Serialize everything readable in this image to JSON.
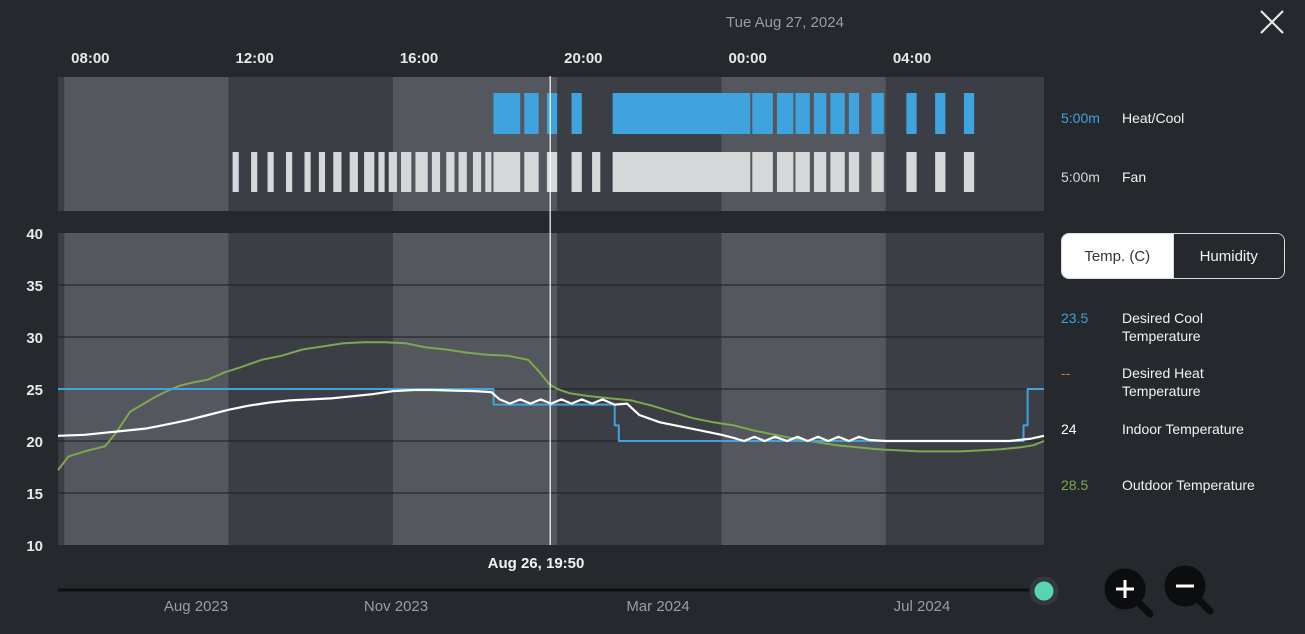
{
  "header": {
    "date": "Tue Aug 27, 2024"
  },
  "time_ticks": [
    "08:00",
    "12:00",
    "16:00",
    "20:00",
    "00:00",
    "04:00"
  ],
  "equipment": {
    "heat_cool": {
      "value": "5:00m",
      "label": "Heat/Cool",
      "color": "#3fa3de"
    },
    "fan": {
      "value": "5:00m",
      "label": "Fan",
      "color": "#d6d7d9"
    },
    "heat_cool_runs": [
      [
        18.45,
        19.1
      ],
      [
        19.2,
        19.55
      ],
      [
        19.75,
        20.0
      ],
      [
        20.35,
        20.6
      ],
      [
        21.35,
        24.7
      ],
      [
        24.75,
        25.25
      ],
      [
        25.35,
        25.75
      ],
      [
        25.8,
        26.15
      ],
      [
        26.25,
        26.55
      ],
      [
        26.65,
        27.0
      ],
      [
        27.1,
        27.35
      ],
      [
        27.65,
        27.95
      ],
      [
        28.5,
        28.75
      ],
      [
        29.2,
        29.45
      ],
      [
        29.9,
        30.15
      ]
    ],
    "fan_runs": [
      [
        12.1,
        12.25
      ],
      [
        12.55,
        12.7
      ],
      [
        12.95,
        13.1
      ],
      [
        13.4,
        13.55
      ],
      [
        13.85,
        14.0
      ],
      [
        14.2,
        14.35
      ],
      [
        14.55,
        14.75
      ],
      [
        14.95,
        15.15
      ],
      [
        15.3,
        15.55
      ],
      [
        15.65,
        15.8
      ],
      [
        15.9,
        16.1
      ],
      [
        16.2,
        16.45
      ],
      [
        16.55,
        16.85
      ],
      [
        16.95,
        17.15
      ],
      [
        17.3,
        17.5
      ],
      [
        17.6,
        17.8
      ],
      [
        17.95,
        18.15
      ],
      [
        18.25,
        18.4
      ],
      [
        18.45,
        19.1
      ],
      [
        19.2,
        19.55
      ],
      [
        19.75,
        20.0
      ],
      [
        20.35,
        20.6
      ],
      [
        20.85,
        21.05
      ],
      [
        21.35,
        24.7
      ],
      [
        24.75,
        25.25
      ],
      [
        25.35,
        25.75
      ],
      [
        25.8,
        26.15
      ],
      [
        26.25,
        26.55
      ],
      [
        26.65,
        27.0
      ],
      [
        27.1,
        27.35
      ],
      [
        27.65,
        27.95
      ],
      [
        28.5,
        28.75
      ],
      [
        29.2,
        29.45
      ],
      [
        29.9,
        30.15
      ]
    ]
  },
  "toggle": {
    "temp_label": "Temp. (C)",
    "humidity_label": "Humidity",
    "selected": "temp"
  },
  "legend": {
    "desired_cool": {
      "value": "23.5",
      "label": "Desired Cool Temperature",
      "color": "#3fa3de"
    },
    "desired_heat": {
      "value": "--",
      "label": "Desired Heat Temperature",
      "color": "#e07a3a"
    },
    "indoor": {
      "value": "24",
      "label": "Indoor Temperature",
      "color": "#ffffff"
    },
    "outdoor": {
      "value": "28.5",
      "label": "Outdoor Temperature",
      "color": "#7ea84f"
    }
  },
  "cursor": {
    "label": "Aug 26, 19:50",
    "time": 19.83
  },
  "timeline": {
    "months": [
      "Aug 2023",
      "Nov 2023",
      "Mar 2024",
      "Jul 2024"
    ]
  },
  "chart_data": {
    "type": "line",
    "x_unit": "hours from Aug 26 00:00",
    "xlim": [
      7.85,
      31.85
    ],
    "ylim": [
      10,
      40
    ],
    "yticks": [
      10,
      15,
      20,
      25,
      30,
      35,
      40
    ],
    "grid": true,
    "series": [
      {
        "name": "Desired Cool Temperature",
        "color": "#3fa3de",
        "step": true,
        "x": [
          7.85,
          18.45,
          18.45,
          21.4,
          21.4,
          21.5,
          21.5,
          31.35,
          31.35,
          31.45,
          31.45,
          31.85
        ],
        "y": [
          25,
          25,
          23.5,
          23.5,
          21.5,
          21.5,
          20,
          20,
          21.5,
          21.5,
          25,
          25
        ]
      },
      {
        "name": "Indoor Temperature",
        "color": "#ffffff",
        "x": [
          7.85,
          8.5,
          9.0,
          9.5,
          10.0,
          10.5,
          11.0,
          11.5,
          12.0,
          12.5,
          13.0,
          13.5,
          14.0,
          14.5,
          15.0,
          15.5,
          16.0,
          16.5,
          17.0,
          17.5,
          18.0,
          18.4,
          18.6,
          18.85,
          19.1,
          19.35,
          19.6,
          19.85,
          20.1,
          20.35,
          20.6,
          20.85,
          21.1,
          21.4,
          21.7,
          22.0,
          22.5,
          23.0,
          23.5,
          24.0,
          24.3,
          24.55,
          24.8,
          25.05,
          25.3,
          25.6,
          25.85,
          26.1,
          26.35,
          26.6,
          26.85,
          27.1,
          27.35,
          27.6,
          28.0,
          29.0,
          30.0,
          31.0,
          31.5,
          31.85
        ],
        "y": [
          20.5,
          20.6,
          20.8,
          21.0,
          21.2,
          21.6,
          22.0,
          22.5,
          23.0,
          23.4,
          23.7,
          23.9,
          24.0,
          24.1,
          24.3,
          24.5,
          24.8,
          24.9,
          24.9,
          24.85,
          24.8,
          24.7,
          24.0,
          23.6,
          24.0,
          23.6,
          24.0,
          23.6,
          24.0,
          23.6,
          24.0,
          23.6,
          24.0,
          23.5,
          23.6,
          22.5,
          21.8,
          21.4,
          21.0,
          20.6,
          20.3,
          20.0,
          20.4,
          20.0,
          20.4,
          20.0,
          20.4,
          20.0,
          20.4,
          20.0,
          20.4,
          20.0,
          20.4,
          20.1,
          20.0,
          20.0,
          20.0,
          20.0,
          20.2,
          20.5
        ]
      },
      {
        "name": "Outdoor Temperature",
        "color": "#7ea84f",
        "x": [
          7.85,
          8.1,
          8.5,
          9.0,
          9.3,
          9.6,
          9.9,
          10.2,
          10.5,
          10.8,
          11.1,
          11.5,
          11.9,
          12.3,
          12.8,
          13.3,
          13.8,
          14.3,
          14.8,
          15.3,
          15.8,
          16.3,
          16.8,
          17.3,
          17.8,
          18.3,
          18.8,
          19.3,
          19.6,
          19.8,
          20.0,
          20.3,
          20.8,
          21.3,
          21.8,
          22.3,
          22.8,
          23.3,
          23.8,
          24.3,
          24.8,
          25.3,
          25.8,
          26.3,
          26.8,
          27.3,
          27.8,
          28.3,
          28.8,
          29.3,
          29.8,
          30.3,
          30.8,
          31.3,
          31.6,
          31.85
        ],
        "y": [
          17.2,
          18.5,
          19.0,
          19.5,
          21.0,
          22.8,
          23.5,
          24.2,
          24.8,
          25.3,
          25.6,
          25.9,
          26.6,
          27.1,
          27.8,
          28.2,
          28.8,
          29.1,
          29.4,
          29.5,
          29.5,
          29.4,
          29.0,
          28.8,
          28.5,
          28.3,
          28.2,
          27.8,
          26.5,
          25.5,
          25.0,
          24.6,
          24.3,
          24.1,
          23.9,
          23.4,
          22.8,
          22.2,
          21.8,
          21.5,
          21.0,
          20.6,
          20.2,
          19.9,
          19.6,
          19.4,
          19.2,
          19.1,
          19.0,
          19.0,
          19.0,
          19.1,
          19.2,
          19.4,
          19.6,
          20.0
        ]
      }
    ]
  }
}
